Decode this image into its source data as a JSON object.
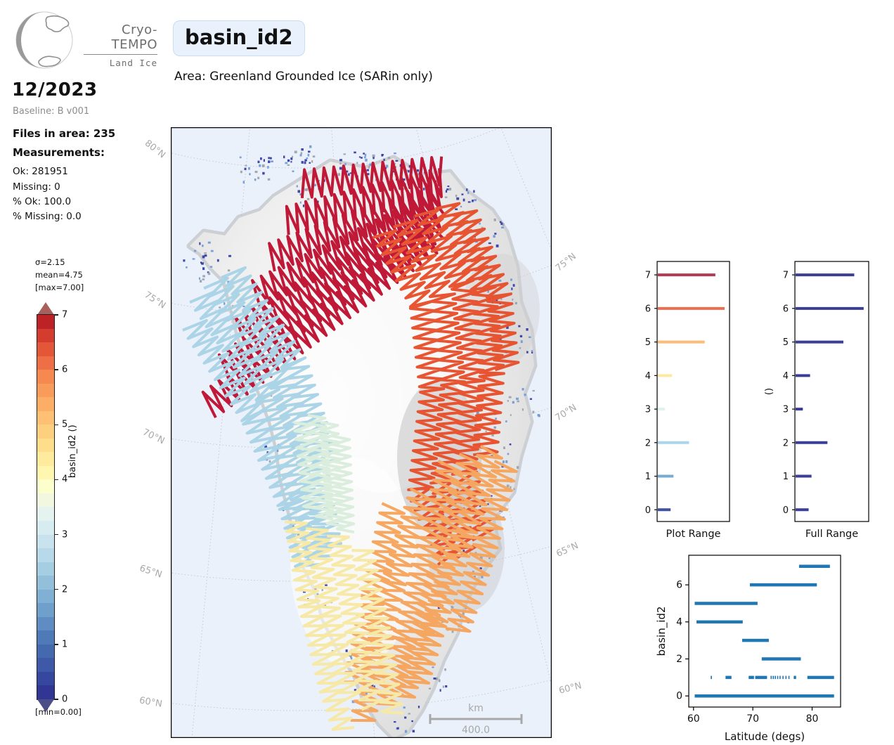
{
  "logo": {
    "brand": "Cryo-TEMPO",
    "sub": "Land Ice"
  },
  "period": {
    "date": "12/2023",
    "baseline": "Baseline: B v001"
  },
  "stats": {
    "files": "Files in area: 235",
    "measurements_label": "Measurements:",
    "ok": "Ok: 281951",
    "missing": "Missing: 0",
    "pct_ok": "% Ok: 100.0",
    "pct_missing": "% Missing: 0.0"
  },
  "title": {
    "label": "basin_id2",
    "area": "Area: Greenland Grounded Ice (SARin only)"
  },
  "colorbar": {
    "sigma": "σ=2.15",
    "mean": "mean=4.75",
    "max": "[max=7.00]",
    "min": "[min=0.00]",
    "axis_label": "basin_id2 ()",
    "ticks": [
      0,
      1,
      2,
      3,
      4,
      5,
      6,
      7
    ],
    "steps_bottom_to_top": [
      "#313695",
      "#35479e",
      "#3d59a7",
      "#4569af",
      "#4f7ab8",
      "#5f8dc3",
      "#6f9fcb",
      "#80b0d3",
      "#93bfda",
      "#a6cee3",
      "#b7d9e9",
      "#c8e3ed",
      "#d7ecf1",
      "#e4f2f0",
      "#f1f8df",
      "#fcfecb",
      "#fff7b0",
      "#feeb9d",
      "#fede8a",
      "#fdd07f",
      "#fdc074",
      "#fcae67",
      "#f99c5b",
      "#f5894f",
      "#ee6f45",
      "#e45638",
      "#d43d2e",
      "#bd2227"
    ],
    "arrow_top_color": "#a8605c",
    "arrow_bottom_color": "#4b4e87"
  },
  "map": {
    "graticule_left": [
      "80°N",
      "75°N",
      "70°N",
      "65°N",
      "60°N"
    ],
    "graticule_right": [
      "75°N",
      "70°N",
      "65°N",
      "60°N"
    ],
    "scalebar": {
      "units": "km",
      "length": "400.0"
    },
    "background": "#eaf1fa",
    "land_color": "#ececec",
    "basin_colors": {
      "basin0": "#2e35a5",
      "basin1": "#6b97d5",
      "basin2": "#a9d4e6",
      "basin3": "#daeedd",
      "basin4": "#f7e9a5",
      "basin5": "#f6a55d",
      "basin6": "#e8502d",
      "basin7": "#bf1232"
    }
  },
  "chart_data": [
    {
      "type": "bar",
      "orientation": "horizontal",
      "xlabel": "Plot Range",
      "categories": [
        0,
        1,
        2,
        3,
        4,
        5,
        6,
        7
      ],
      "values_relative": [
        0.18,
        0.22,
        0.44,
        0.1,
        0.2,
        0.66,
        0.94,
        0.81
      ],
      "bar_colors": [
        "#3f51a3",
        "#74add1",
        "#a9d6e8",
        "#dff1f0",
        "#fce9a2",
        "#fbbd77",
        "#eb6e51",
        "#b23a51"
      ],
      "ylim": [
        -0.35,
        7.4
      ],
      "yticks": [
        0,
        1,
        2,
        3,
        4,
        5,
        6,
        7
      ]
    },
    {
      "type": "bar",
      "orientation": "horizontal",
      "xlabel": "Full Range",
      "ylabel": "()",
      "categories": [
        0,
        1,
        2,
        3,
        4,
        5,
        6,
        7
      ],
      "values_relative": [
        0.18,
        0.22,
        0.44,
        0.1,
        0.2,
        0.66,
        0.94,
        0.81
      ],
      "bar_color": "#3b3e97",
      "ylim": [
        -0.35,
        7.4
      ],
      "yticks": [
        0,
        1,
        2,
        3,
        4,
        5,
        6,
        7
      ]
    },
    {
      "type": "scatter",
      "xlabel": "Latitude (degs)",
      "ylabel": "basin_id2",
      "xticks": [
        60,
        70,
        80
      ],
      "yticks": [
        0,
        2,
        4,
        6
      ],
      "xlim": [
        59.2,
        84.8
      ],
      "ylim": [
        -0.6,
        7.6
      ],
      "color": "#1f77b4",
      "series": [
        {
          "y": 0,
          "lat_segments": [
            [
              60.2,
              83.7
            ]
          ]
        },
        {
          "y": 1,
          "lat_segments": [
            [
              62.9,
              63.1
            ],
            [
              65.4,
              66.4
            ],
            [
              69.3,
              70.2
            ],
            [
              70.4,
              72.4
            ],
            [
              73.0,
              73.15
            ],
            [
              73.35,
              73.5
            ],
            [
              73.7,
              73.8
            ],
            [
              74.1,
              74.25
            ],
            [
              74.5,
              74.65
            ],
            [
              75.0,
              75.15
            ],
            [
              75.5,
              75.65
            ],
            [
              76.0,
              76.1
            ],
            [
              76.9,
              77.3
            ],
            [
              79.2,
              83.7
            ]
          ]
        },
        {
          "y": 2,
          "lat_segments": [
            [
              71.5,
              78.1
            ]
          ]
        },
        {
          "y": 3,
          "lat_segments": [
            [
              68.2,
              72.7
            ]
          ]
        },
        {
          "y": 4,
          "lat_segments": [
            [
              60.5,
              68.3
            ]
          ]
        },
        {
          "y": 5,
          "lat_segments": [
            [
              60.2,
              70.8
            ]
          ]
        },
        {
          "y": 6,
          "lat_segments": [
            [
              69.5,
              80.8
            ]
          ]
        },
        {
          "y": 7,
          "lat_segments": [
            [
              77.8,
              83.0
            ]
          ]
        }
      ]
    }
  ]
}
